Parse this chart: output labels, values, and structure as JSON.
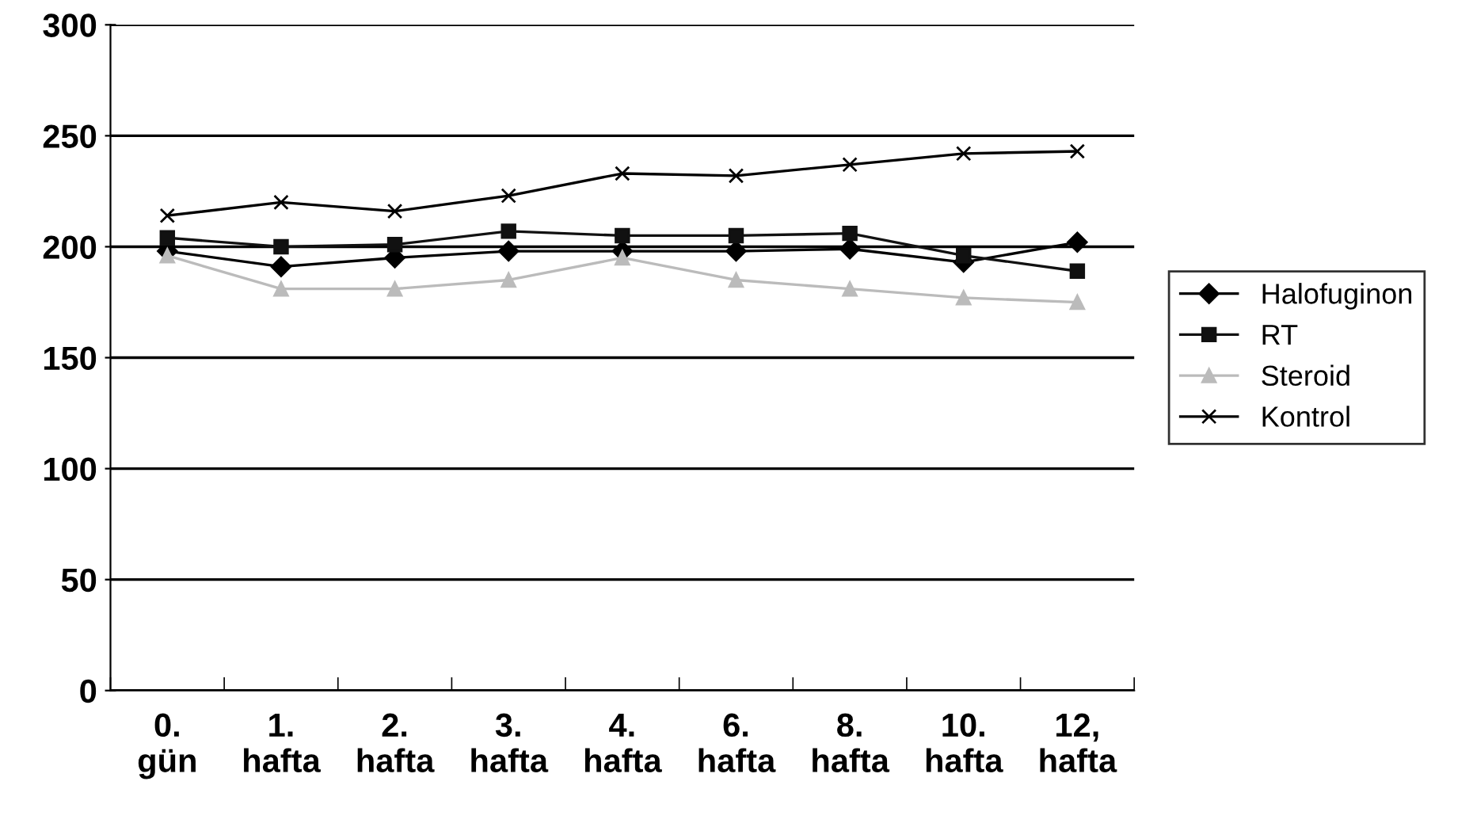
{
  "chart_data": {
    "type": "line",
    "categories": [
      "0.\ngün",
      "1.\nhafta",
      "2.\nhafta",
      "3.\nhafta",
      "4.\nhafta",
      "6.\nhafta",
      "8.\nhafta",
      "10.\nhafta",
      "12,\nhafta"
    ],
    "series": [
      {
        "name": "Halofuginon",
        "color": "#000000",
        "marker": "diamond",
        "values": [
          198,
          191,
          195,
          198,
          198,
          198,
          199,
          193,
          202
        ]
      },
      {
        "name": "RT",
        "color": "#111111",
        "marker": "square",
        "values": [
          204,
          200,
          201,
          207,
          205,
          205,
          206,
          196,
          189
        ]
      },
      {
        "name": "Steroid",
        "color": "#bbbbbb",
        "marker": "triangle",
        "values": [
          196,
          181,
          181,
          185,
          195,
          185,
          181,
          177,
          175
        ]
      },
      {
        "name": "Kontrol",
        "color": "#000000",
        "marker": "cross",
        "values": [
          214,
          220,
          216,
          223,
          233,
          232,
          237,
          242,
          243
        ]
      }
    ],
    "ylim": [
      0,
      300
    ],
    "yticks": [
      0,
      50,
      100,
      150,
      200,
      250,
      300
    ],
    "grid": "y",
    "legend": "right",
    "line_style": "solid"
  }
}
